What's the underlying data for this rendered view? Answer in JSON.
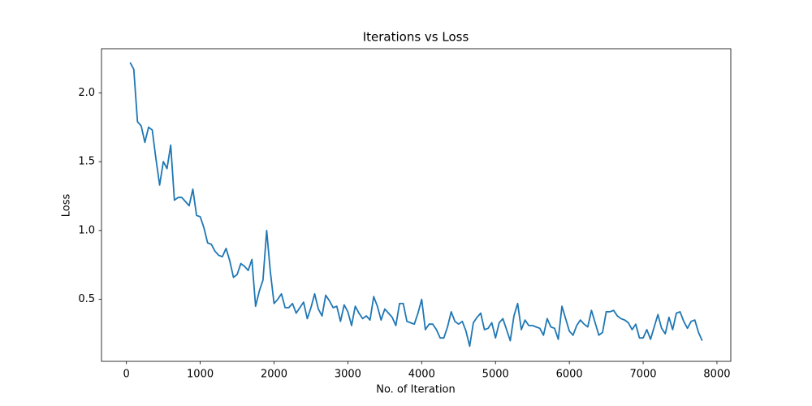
{
  "chart_data": {
    "type": "line",
    "title": "Iterations vs Loss",
    "xlabel": "No. of Iteration",
    "ylabel": "Loss",
    "x": [
      50,
      100,
      150,
      200,
      250,
      300,
      350,
      400,
      450,
      500,
      550,
      600,
      650,
      700,
      750,
      800,
      850,
      900,
      950,
      1000,
      1050,
      1100,
      1150,
      1200,
      1250,
      1300,
      1350,
      1400,
      1450,
      1500,
      1550,
      1600,
      1650,
      1700,
      1750,
      1800,
      1850,
      1900,
      1950,
      2000,
      2050,
      2100,
      2150,
      2200,
      2250,
      2300,
      2350,
      2400,
      2450,
      2500,
      2550,
      2600,
      2650,
      2700,
      2750,
      2800,
      2850,
      2900,
      2950,
      3000,
      3050,
      3100,
      3150,
      3200,
      3250,
      3300,
      3350,
      3400,
      3450,
      3500,
      3550,
      3600,
      3650,
      3700,
      3750,
      3800,
      3850,
      3900,
      3950,
      4000,
      4050,
      4100,
      4150,
      4200,
      4250,
      4300,
      4350,
      4400,
      4450,
      4500,
      4550,
      4600,
      4650,
      4700,
      4750,
      4800,
      4850,
      4900,
      4950,
      5000,
      5050,
      5100,
      5150,
      5200,
      5250,
      5300,
      5350,
      5400,
      5450,
      5500,
      5550,
      5600,
      5650,
      5700,
      5750,
      5800,
      5850,
      5900,
      5950,
      6000,
      6050,
      6100,
      6150,
      6200,
      6250,
      6300,
      6350,
      6400,
      6450,
      6500,
      6550,
      6600,
      6650,
      6700,
      6750,
      6800,
      6850,
      6900,
      6950,
      7000,
      7050,
      7100,
      7150,
      7200,
      7250,
      7300,
      7350,
      7400,
      7450,
      7500,
      7550,
      7600,
      7650,
      7700,
      7750,
      7800
    ],
    "values": [
      2.22,
      2.17,
      1.79,
      1.76,
      1.64,
      1.75,
      1.73,
      1.52,
      1.33,
      1.5,
      1.45,
      1.62,
      1.22,
      1.24,
      1.24,
      1.21,
      1.18,
      1.3,
      1.11,
      1.1,
      1.02,
      0.91,
      0.9,
      0.85,
      0.82,
      0.81,
      0.87,
      0.78,
      0.66,
      0.68,
      0.76,
      0.74,
      0.71,
      0.79,
      0.45,
      0.56,
      0.64,
      1.0,
      0.7,
      0.47,
      0.5,
      0.54,
      0.44,
      0.44,
      0.47,
      0.4,
      0.44,
      0.48,
      0.36,
      0.44,
      0.54,
      0.43,
      0.38,
      0.53,
      0.49,
      0.44,
      0.45,
      0.34,
      0.46,
      0.41,
      0.31,
      0.45,
      0.4,
      0.36,
      0.38,
      0.35,
      0.52,
      0.45,
      0.35,
      0.43,
      0.4,
      0.37,
      0.31,
      0.47,
      0.47,
      0.34,
      0.33,
      0.32,
      0.4,
      0.5,
      0.28,
      0.32,
      0.32,
      0.28,
      0.22,
      0.22,
      0.3,
      0.41,
      0.34,
      0.32,
      0.34,
      0.27,
      0.16,
      0.33,
      0.37,
      0.4,
      0.28,
      0.29,
      0.33,
      0.22,
      0.33,
      0.36,
      0.28,
      0.2,
      0.38,
      0.47,
      0.28,
      0.35,
      0.31,
      0.31,
      0.3,
      0.29,
      0.24,
      0.36,
      0.3,
      0.29,
      0.21,
      0.45,
      0.36,
      0.27,
      0.24,
      0.31,
      0.35,
      0.32,
      0.3,
      0.42,
      0.33,
      0.24,
      0.26,
      0.41,
      0.41,
      0.42,
      0.38,
      0.36,
      0.35,
      0.33,
      0.28,
      0.32,
      0.22,
      0.22,
      0.28,
      0.21,
      0.3,
      0.39,
      0.29,
      0.25,
      0.37,
      0.28,
      0.4,
      0.41,
      0.34,
      0.29,
      0.34,
      0.35,
      0.26,
      0.2
    ],
    "color": "#1f77b4",
    "xlim": [
      -337.5,
      8187.5
    ],
    "xticks": [
      0,
      1000,
      2000,
      3000,
      4000,
      5000,
      6000,
      7000,
      8000
    ],
    "ylim": [
      0.05,
      2.32
    ],
    "yticks": [
      0.5,
      {
        "value": 1,
        "label": "1.0"
      },
      1.5,
      {
        "value": 2,
        "label": "2.0"
      }
    ],
    "grid": false
  }
}
